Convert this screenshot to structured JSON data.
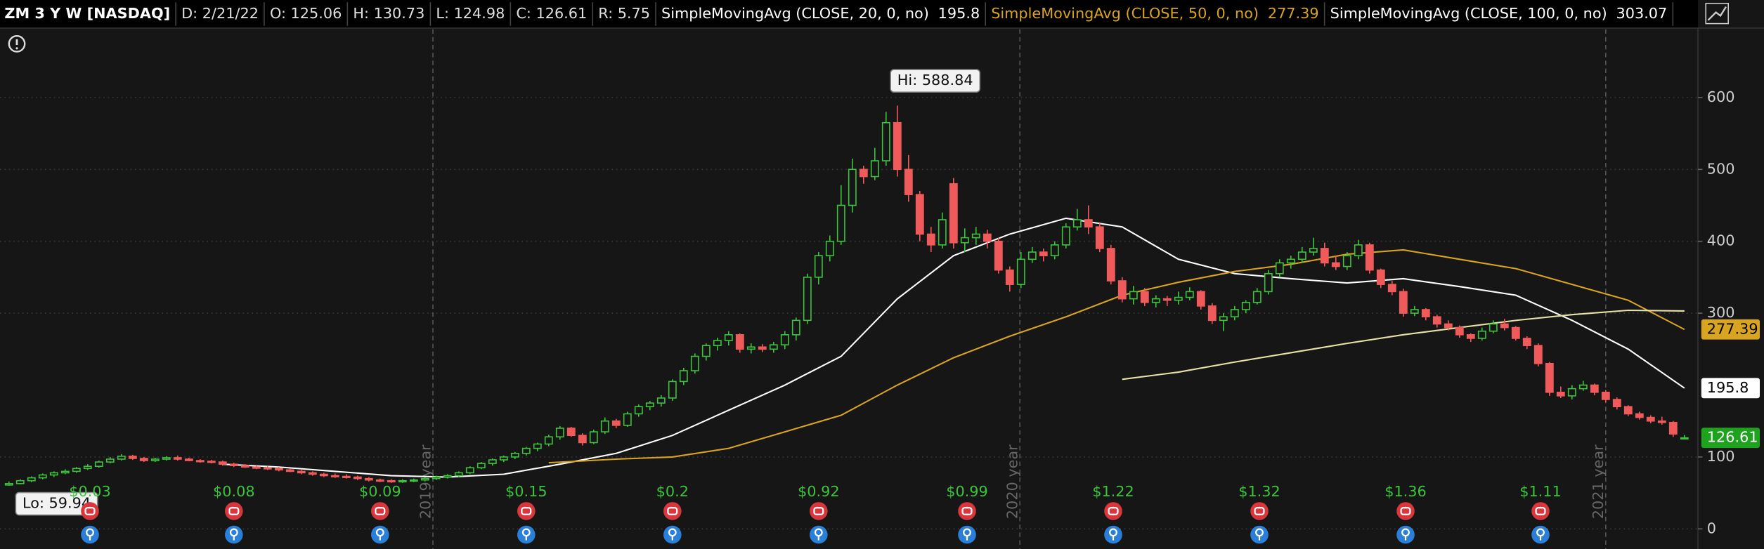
{
  "chart_data": {
    "type": "candlestick",
    "header": [
      {
        "text": "ZM 3 Y W [NASDAQ]",
        "color": "#ffffff"
      },
      {
        "text": "D: 2/21/22",
        "color": "#e0e0e0"
      },
      {
        "text": "O: 125.06",
        "color": "#e0e0e0"
      },
      {
        "text": "H: 130.73",
        "color": "#e0e0e0"
      },
      {
        "text": "L: 124.98",
        "color": "#e0e0e0"
      },
      {
        "text": "C: 126.61",
        "color": "#e0e0e0"
      },
      {
        "text": "R: 5.75",
        "color": "#e0e0e0"
      },
      {
        "text": "SimpleMovingAvg (CLOSE, 20, 0, no)",
        "color": "#ffffff"
      },
      {
        "text": "195.8",
        "color": "#ffffff"
      },
      {
        "text": "SimpleMovingAvg (CLOSE, 50, 0, no)",
        "color": "#d9a520"
      },
      {
        "text": "277.39",
        "color": "#d9a520"
      },
      {
        "text": "SimpleMovingAvg (CLOSE, 100, 0, no)",
        "color": "#ffffff"
      },
      {
        "text": "303.07",
        "color": "#ffffff"
      }
    ],
    "up_color": "#3cc43c",
    "down_color": "#f05a5a",
    "xlim": [
      -0.8,
      150.2
    ],
    "ylim": [
      -28,
      695
    ],
    "yticks": [
      0,
      100,
      300,
      400,
      500,
      600
    ],
    "grid": true,
    "ohlc": [
      [
        61,
        66,
        59.94,
        63
      ],
      [
        63,
        69,
        62,
        67
      ],
      [
        67,
        73,
        65,
        71
      ],
      [
        71,
        77,
        69,
        75
      ],
      [
        75,
        80,
        72,
        78
      ],
      [
        78,
        83,
        76,
        80
      ],
      [
        80,
        86,
        78,
        84
      ],
      [
        84,
        90,
        82,
        87
      ],
      [
        87,
        95,
        85,
        93
      ],
      [
        93,
        100,
        91,
        97
      ],
      [
        97,
        104,
        95,
        101
      ],
      [
        101,
        103,
        96,
        98
      ],
      [
        98,
        100,
        93,
        95
      ],
      [
        95,
        99,
        93,
        97
      ],
      [
        97,
        101,
        95,
        99
      ],
      [
        99,
        102,
        95,
        97
      ],
      [
        97,
        99,
        94,
        95
      ],
      [
        95,
        97,
        92,
        94
      ],
      [
        94,
        96,
        91,
        93
      ],
      [
        93,
        95,
        88,
        90
      ],
      [
        90,
        92,
        86,
        88
      ],
      [
        88,
        90,
        85,
        86
      ],
      [
        86,
        88,
        83,
        85
      ],
      [
        85,
        87,
        82,
        84
      ],
      [
        84,
        86,
        80,
        82
      ],
      [
        82,
        84,
        79,
        80
      ],
      [
        80,
        82,
        76,
        78
      ],
      [
        78,
        80,
        74,
        76
      ],
      [
        76,
        78,
        72,
        74
      ],
      [
        74,
        77,
        71,
        73
      ],
      [
        73,
        76,
        70,
        72
      ],
      [
        72,
        74,
        68,
        70
      ],
      [
        70,
        72,
        66,
        68
      ],
      [
        68,
        70,
        65,
        67
      ],
      [
        67,
        69,
        64,
        66
      ],
      [
        66,
        69,
        64,
        67
      ],
      [
        67,
        70,
        65,
        68
      ],
      [
        68,
        72,
        66,
        70
      ],
      [
        70,
        74,
        68,
        72
      ],
      [
        72,
        76,
        70,
        74
      ],
      [
        74,
        80,
        72,
        78
      ],
      [
        78,
        87,
        76,
        85
      ],
      [
        85,
        93,
        83,
        91
      ],
      [
        91,
        98,
        88,
        96
      ],
      [
        96,
        102,
        93,
        100
      ],
      [
        100,
        107,
        97,
        105
      ],
      [
        105,
        114,
        102,
        112
      ],
      [
        112,
        120,
        108,
        118
      ],
      [
        118,
        131,
        115,
        128
      ],
      [
        128,
        143,
        124,
        140
      ],
      [
        140,
        142,
        128,
        130
      ],
      [
        130,
        133,
        116,
        120
      ],
      [
        120,
        138,
        118,
        135
      ],
      [
        135,
        155,
        132,
        150
      ],
      [
        150,
        153,
        140,
        144
      ],
      [
        144,
        163,
        142,
        160
      ],
      [
        160,
        173,
        156,
        170
      ],
      [
        170,
        178,
        165,
        175
      ],
      [
        175,
        186,
        170,
        182
      ],
      [
        182,
        208,
        178,
        205
      ],
      [
        205,
        224,
        200,
        220
      ],
      [
        220,
        244,
        216,
        240
      ],
      [
        240,
        258,
        234,
        255
      ],
      [
        255,
        266,
        248,
        262
      ],
      [
        262,
        275,
        255,
        270
      ],
      [
        270,
        272,
        245,
        250
      ],
      [
        250,
        258,
        244,
        253
      ],
      [
        253,
        257,
        246,
        250
      ],
      [
        250,
        260,
        245,
        256
      ],
      [
        256,
        275,
        250,
        270
      ],
      [
        270,
        294,
        262,
        290
      ],
      [
        290,
        355,
        285,
        350
      ],
      [
        350,
        385,
        340,
        380
      ],
      [
        380,
        408,
        372,
        400
      ],
      [
        400,
        478,
        395,
        450
      ],
      [
        450,
        515,
        440,
        500
      ],
      [
        500,
        505,
        480,
        490
      ],
      [
        490,
        530,
        485,
        512
      ],
      [
        512,
        580,
        505,
        565
      ],
      [
        565,
        588.84,
        490,
        500
      ],
      [
        500,
        520,
        455,
        465
      ],
      [
        465,
        470,
        400,
        410
      ],
      [
        410,
        420,
        385,
        395
      ],
      [
        395,
        440,
        390,
        430
      ],
      [
        480,
        488,
        390,
        398
      ],
      [
        398,
        418,
        385,
        405
      ],
      [
        405,
        420,
        395,
        410
      ],
      [
        410,
        416,
        390,
        400
      ],
      [
        400,
        405,
        355,
        360
      ],
      [
        360,
        365,
        330,
        340
      ],
      [
        340,
        385,
        335,
        375
      ],
      [
        375,
        392,
        370,
        385
      ],
      [
        385,
        390,
        372,
        380
      ],
      [
        380,
        400,
        375,
        395
      ],
      [
        395,
        425,
        390,
        420
      ],
      [
        420,
        445,
        415,
        430
      ],
      [
        430,
        450,
        410,
        420
      ],
      [
        420,
        425,
        385,
        390
      ],
      [
        390,
        395,
        340,
        345
      ],
      [
        345,
        350,
        315,
        320
      ],
      [
        320,
        338,
        312,
        330
      ],
      [
        330,
        335,
        310,
        315
      ],
      [
        315,
        325,
        308,
        320
      ],
      [
        320,
        324,
        310,
        318
      ],
      [
        318,
        330,
        312,
        322
      ],
      [
        322,
        336,
        318,
        330
      ],
      [
        330,
        332,
        305,
        310
      ],
      [
        310,
        314,
        285,
        290
      ],
      [
        290,
        300,
        275,
        295
      ],
      [
        295,
        310,
        290,
        305
      ],
      [
        305,
        318,
        300,
        315
      ],
      [
        315,
        335,
        312,
        330
      ],
      [
        330,
        360,
        326,
        355
      ],
      [
        355,
        375,
        350,
        370
      ],
      [
        370,
        380,
        362,
        375
      ],
      [
        375,
        392,
        370,
        385
      ],
      [
        385,
        405,
        380,
        390
      ],
      [
        390,
        398,
        365,
        370
      ],
      [
        370,
        380,
        360,
        365
      ],
      [
        365,
        385,
        360,
        380
      ],
      [
        380,
        402,
        375,
        395
      ],
      [
        395,
        398,
        355,
        360
      ],
      [
        360,
        362,
        335,
        340
      ],
      [
        340,
        345,
        325,
        330
      ],
      [
        330,
        334,
        295,
        300
      ],
      [
        300,
        310,
        296,
        305
      ],
      [
        305,
        307,
        290,
        295
      ],
      [
        295,
        298,
        280,
        285
      ],
      [
        285,
        290,
        276,
        280
      ],
      [
        280,
        283,
        266,
        270
      ],
      [
        270,
        272,
        260,
        265
      ],
      [
        265,
        280,
        262,
        275
      ],
      [
        275,
        290,
        272,
        285
      ],
      [
        285,
        292,
        276,
        280
      ],
      [
        280,
        282,
        262,
        265
      ],
      [
        265,
        268,
        250,
        255
      ],
      [
        255,
        258,
        226,
        230
      ],
      [
        230,
        232,
        185,
        190
      ],
      [
        190,
        198,
        182,
        185
      ],
      [
        185,
        200,
        180,
        195
      ],
      [
        195,
        206,
        192,
        200
      ],
      [
        200,
        202,
        186,
        190
      ],
      [
        190,
        193,
        176,
        180
      ],
      [
        180,
        183,
        166,
        170
      ],
      [
        170,
        172,
        157,
        160
      ],
      [
        160,
        163,
        152,
        155
      ],
      [
        155,
        158,
        147,
        150
      ],
      [
        150,
        156,
        145,
        148
      ],
      [
        148,
        150,
        128,
        132
      ],
      [
        125.06,
        130.73,
        124.98,
        126.61
      ]
    ],
    "series": [
      {
        "name": "SimpleMovingAvg (CLOSE, 20, 0, no)",
        "color": "#ffffff",
        "x": [
          19,
          24,
          29,
          34,
          39,
          44,
          49,
          54,
          59,
          64,
          69,
          74,
          79,
          84,
          89,
          94,
          99,
          104,
          109,
          114,
          119,
          124,
          129,
          134,
          139,
          144,
          149
        ],
        "values": [
          90,
          86,
          80,
          74,
          72,
          76,
          90,
          105,
          130,
          165,
          200,
          240,
          320,
          380,
          410,
          432,
          420,
          375,
          355,
          348,
          342,
          348,
          337,
          325,
          290,
          250,
          195.8
        ]
      },
      {
        "name": "SimpleMovingAvg (CLOSE, 50, 0, no)",
        "color": "#d9a520",
        "x": [
          48,
          54,
          59,
          64,
          69,
          74,
          79,
          84,
          89,
          94,
          99,
          104,
          109,
          114,
          119,
          124,
          129,
          134,
          139,
          144,
          149
        ],
        "values": [
          92,
          97,
          100,
          112,
          135,
          158,
          200,
          238,
          268,
          295,
          325,
          343,
          358,
          368,
          382,
          388,
          375,
          362,
          340,
          318,
          277.39
        ]
      },
      {
        "name": "SimpleMovingAvg (CLOSE, 100, 0, no)",
        "color": "#e8e2a8",
        "x": [
          99,
          104,
          109,
          114,
          119,
          124,
          129,
          134,
          139,
          144,
          149
        ],
        "values": [
          208,
          218,
          232,
          245,
          258,
          270,
          280,
          290,
          298,
          304,
          303.07
        ]
      }
    ],
    "price_tags": [
      {
        "value": 277.39,
        "color": "#d9a520",
        "text_color": "#000000"
      },
      {
        "value": 195.8,
        "color": "#ffffff",
        "text_color": "#000000"
      },
      {
        "value": 126.61,
        "color": "#1fa31f",
        "text_color": "#ffffff"
      }
    ],
    "hi_label": "Hi: 588.84",
    "lo_label": "Lo: 59.94",
    "annotations": [
      {
        "x": 37.7,
        "label": "2019 year"
      },
      {
        "x": 89.9,
        "label": "2020 year"
      },
      {
        "x": 142,
        "label": "2021 year"
      }
    ],
    "events": [
      {
        "x": 7.2,
        "label": "$0.03"
      },
      {
        "x": 20,
        "label": "$0.08"
      },
      {
        "x": 33,
        "label": "$0.09"
      },
      {
        "x": 46,
        "label": "$0.15"
      },
      {
        "x": 59,
        "label": "$0.2"
      },
      {
        "x": 72,
        "label": "$0.92"
      },
      {
        "x": 85.2,
        "label": "$0.99"
      },
      {
        "x": 98.2,
        "label": "$1.22"
      },
      {
        "x": 111.2,
        "label": "$1.32"
      },
      {
        "x": 124.2,
        "label": "$1.36"
      },
      {
        "x": 136.2,
        "label": "$1.11"
      }
    ]
  }
}
